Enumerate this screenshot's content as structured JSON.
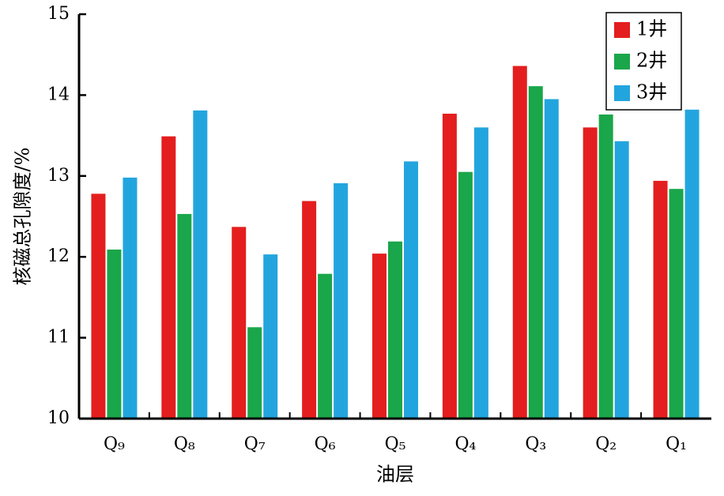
{
  "chart_data": {
    "type": "bar",
    "xlabel": "油层",
    "ylabel": "核磁总孔隙度/%",
    "categories": [
      "Q₉",
      "Q₈",
      "Q₇",
      "Q₆",
      "Q₅",
      "Q₄",
      "Q₃",
      "Q₂",
      "Q₁"
    ],
    "series": [
      {
        "name": "1井",
        "color": "#e41e1e",
        "values": [
          12.78,
          13.49,
          12.37,
          12.69,
          12.04,
          13.77,
          14.36,
          13.6,
          12.94
        ]
      },
      {
        "name": "2井",
        "color": "#1aa64a",
        "values": [
          12.09,
          12.53,
          11.13,
          11.79,
          12.19,
          13.05,
          14.11,
          13.76,
          12.84
        ]
      },
      {
        "name": "3井",
        "color": "#22a5de",
        "values": [
          12.98,
          13.81,
          12.03,
          12.91,
          13.18,
          13.6,
          13.95,
          13.43,
          13.82
        ]
      }
    ],
    "ylim": [
      10,
      15
    ],
    "yticks": [
      10,
      11,
      12,
      13,
      14,
      15
    ],
    "legend": "upper-right"
  }
}
